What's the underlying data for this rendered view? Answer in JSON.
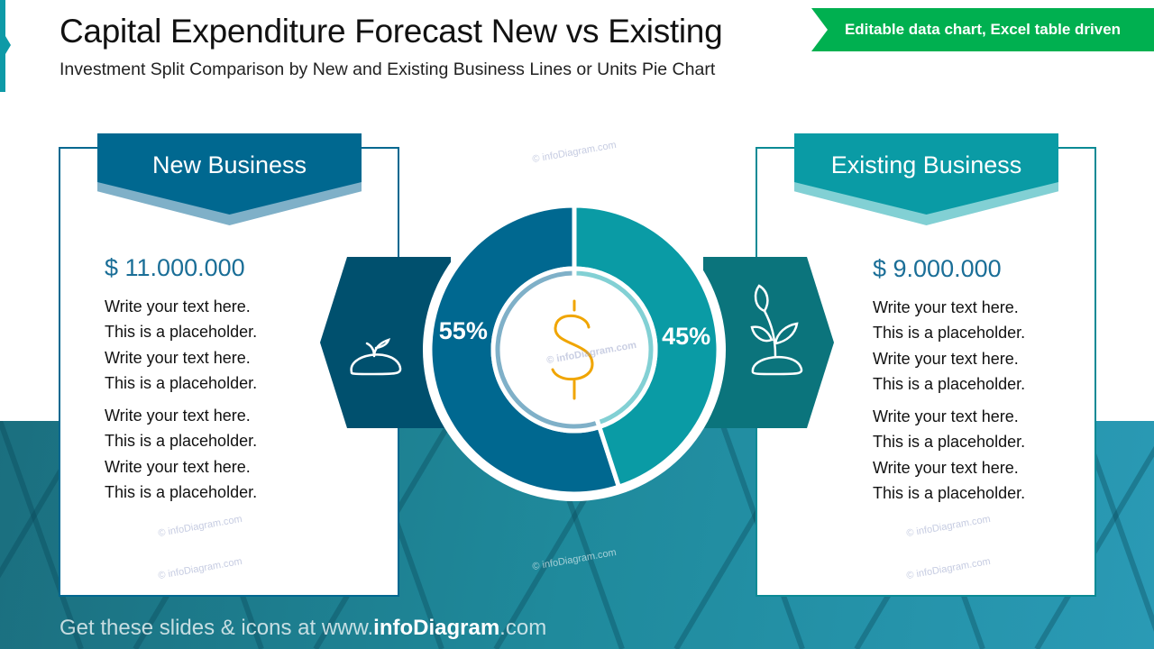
{
  "header": {
    "title": "Capital Expenditure Forecast New vs Existing",
    "subtitle": "Investment Split Comparison by New and Existing Business Lines or Units Pie Chart",
    "badge": "Editable data chart, Excel table driven"
  },
  "left": {
    "title": "New Business",
    "amount": "$ 11.000.000",
    "icon": "seedling-sprout-icon",
    "lines": [
      "Write your text here.",
      "This is a placeholder.",
      "Write your text here.",
      "This is a placeholder.",
      "Write your text here.",
      "This is a placeholder.",
      "Write your text here.",
      "This is a placeholder."
    ]
  },
  "right": {
    "title": "Existing Business",
    "amount": "$ 9.000.000",
    "icon": "growing-plant-icon",
    "lines": [
      "Write your text here.",
      "This is a placeholder.",
      "Write your text here.",
      "This is a placeholder.",
      "Write your text here.",
      "This is a placeholder.",
      "Write your text here.",
      "This is a placeholder."
    ]
  },
  "watermark": "© infoDiagram.com",
  "footer": {
    "prefix": "Get these slides & icons at www.",
    "brand": "infoDiagram",
    ".com": ".com"
  },
  "colors": {
    "new": "#006890",
    "existing": "#0a9ba5",
    "dollar": "#f0a500",
    "badge": "#00b050"
  },
  "chart_data": {
    "type": "pie",
    "donut": true,
    "categories": [
      "New Business",
      "Existing Business"
    ],
    "values": [
      55,
      45
    ],
    "labels": [
      "55%",
      "45%"
    ],
    "center_icon": "dollar-icon"
  }
}
